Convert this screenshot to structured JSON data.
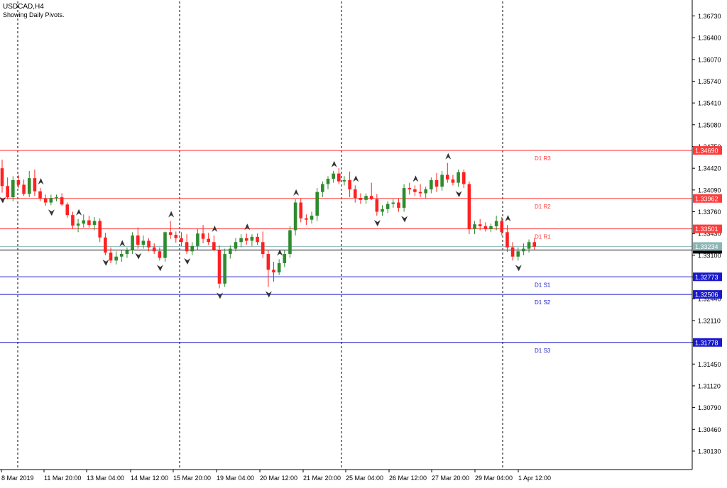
{
  "chart_data": {
    "type": "candlestick",
    "symbol_line": "USDCAD,H4",
    "subtitle": "Showing Daily Pivots.",
    "price_labels": [
      "1.36730",
      "1.36400",
      "1.36070",
      "1.35740",
      "1.35410",
      "1.35080",
      "1.34750",
      "1.34420",
      "1.34090",
      "1.33760",
      "1.33430",
      "1.33100",
      "1.32770",
      "1.32440",
      "1.32110",
      "1.31780",
      "1.31450",
      "1.31120",
      "1.30790",
      "1.30460",
      "1.30130"
    ],
    "time_labels": [
      "8 Mar 2019",
      "11 Mar 20:00",
      "13 Mar 04:00",
      "14 Mar 12:00",
      "15 Mar 20:00",
      "19 Mar 04:00",
      "20 Mar 12:00",
      "21 Mar 20:00",
      "25 Mar 04:00",
      "26 Mar 12:00",
      "27 Mar 20:00",
      "29 Mar 04:00",
      "1 Apr 12:00"
    ],
    "ylim": [
      1.2985,
      1.3695
    ],
    "grid": false,
    "pivots": [
      {
        "name": "D1 R3",
        "value": 1.3469,
        "label": "1.34690",
        "color": "#ff3b3b"
      },
      {
        "name": "D1 R2",
        "value": 1.33962,
        "label": "1.33962",
        "color": "#ff3b3b"
      },
      {
        "name": "D1 R1",
        "value": 1.33501,
        "label": "1.33501",
        "color": "#ff3b3b"
      },
      {
        "name": "D1 S1",
        "value": 1.32773,
        "label": "1.32773",
        "color": "#1a1acc"
      },
      {
        "name": "D1 S2",
        "value": 1.32506,
        "label": "1.32506",
        "color": "#1a1acc"
      },
      {
        "name": "D1 S3",
        "value": 1.31778,
        "label": "1.31778",
        "color": "#1a1acc"
      }
    ],
    "current_price": {
      "value": 1.33234,
      "label": "1.33234",
      "color": "#8cb6b6"
    },
    "bid_line_value": 1.3318,
    "colors": {
      "bull": "#2e8b2e",
      "bear": "#ff2020",
      "wick": "#444444",
      "fractal": "#333333",
      "axis": "#000000"
    },
    "candles": [
      {
        "o": 1.3442,
        "h": 1.3455,
        "l": 1.3405,
        "c": 1.3415
      },
      {
        "o": 1.3415,
        "h": 1.3428,
        "l": 1.3395,
        "c": 1.3398
      },
      {
        "o": 1.3398,
        "h": 1.343,
        "l": 1.3392,
        "c": 1.3424
      },
      {
        "o": 1.3424,
        "h": 1.3432,
        "l": 1.3412,
        "c": 1.3417
      },
      {
        "o": 1.3417,
        "h": 1.3425,
        "l": 1.34,
        "c": 1.3403
      },
      {
        "o": 1.3403,
        "h": 1.3438,
        "l": 1.3398,
        "c": 1.3427
      },
      {
        "o": 1.3427,
        "h": 1.344,
        "l": 1.34,
        "c": 1.3407
      },
      {
        "o": 1.3407,
        "h": 1.3412,
        "l": 1.3392,
        "c": 1.3396
      },
      {
        "o": 1.3396,
        "h": 1.3402,
        "l": 1.3385,
        "c": 1.339
      },
      {
        "o": 1.339,
        "h": 1.3402,
        "l": 1.3386,
        "c": 1.3397
      },
      {
        "o": 1.3397,
        "h": 1.3402,
        "l": 1.3392,
        "c": 1.3398
      },
      {
        "o": 1.3398,
        "h": 1.3404,
        "l": 1.3385,
        "c": 1.3387
      },
      {
        "o": 1.3387,
        "h": 1.339,
        "l": 1.3367,
        "c": 1.3371
      },
      {
        "o": 1.3371,
        "h": 1.3376,
        "l": 1.335,
        "c": 1.3355
      },
      {
        "o": 1.3355,
        "h": 1.3365,
        "l": 1.3345,
        "c": 1.3358
      },
      {
        "o": 1.3358,
        "h": 1.3372,
        "l": 1.3352,
        "c": 1.3363
      },
      {
        "o": 1.3363,
        "h": 1.337,
        "l": 1.3352,
        "c": 1.3356
      },
      {
        "o": 1.3356,
        "h": 1.3368,
        "l": 1.3348,
        "c": 1.3362
      },
      {
        "o": 1.3362,
        "h": 1.3366,
        "l": 1.333,
        "c": 1.3337
      },
      {
        "o": 1.3337,
        "h": 1.3344,
        "l": 1.331,
        "c": 1.3314
      },
      {
        "o": 1.3314,
        "h": 1.3322,
        "l": 1.3298,
        "c": 1.3302
      },
      {
        "o": 1.3302,
        "h": 1.3316,
        "l": 1.3296,
        "c": 1.3308
      },
      {
        "o": 1.3308,
        "h": 1.3318,
        "l": 1.33,
        "c": 1.3312
      },
      {
        "o": 1.3312,
        "h": 1.3322,
        "l": 1.3306,
        "c": 1.3318
      },
      {
        "o": 1.3318,
        "h": 1.3345,
        "l": 1.3312,
        "c": 1.334
      },
      {
        "o": 1.334,
        "h": 1.3352,
        "l": 1.332,
        "c": 1.3326
      },
      {
        "o": 1.3326,
        "h": 1.334,
        "l": 1.332,
        "c": 1.3332
      },
      {
        "o": 1.3332,
        "h": 1.3336,
        "l": 1.3316,
        "c": 1.3322
      },
      {
        "o": 1.3322,
        "h": 1.3328,
        "l": 1.3312,
        "c": 1.3316
      },
      {
        "o": 1.3316,
        "h": 1.3322,
        "l": 1.3302,
        "c": 1.3306
      },
      {
        "o": 1.3306,
        "h": 1.3346,
        "l": 1.33,
        "c": 1.3345
      },
      {
        "o": 1.3345,
        "h": 1.3362,
        "l": 1.3335,
        "c": 1.3341
      },
      {
        "o": 1.3341,
        "h": 1.3346,
        "l": 1.3329,
        "c": 1.3336
      },
      {
        "o": 1.3336,
        "h": 1.3345,
        "l": 1.3324,
        "c": 1.333
      },
      {
        "o": 1.333,
        "h": 1.3342,
        "l": 1.3312,
        "c": 1.3316
      },
      {
        "o": 1.3316,
        "h": 1.333,
        "l": 1.331,
        "c": 1.3324
      },
      {
        "o": 1.3324,
        "h": 1.335,
        "l": 1.3318,
        "c": 1.3343
      },
      {
        "o": 1.3343,
        "h": 1.3356,
        "l": 1.3328,
        "c": 1.3335
      },
      {
        "o": 1.3335,
        "h": 1.3344,
        "l": 1.3326,
        "c": 1.333
      },
      {
        "o": 1.333,
        "h": 1.334,
        "l": 1.3316,
        "c": 1.3318
      },
      {
        "o": 1.3318,
        "h": 1.3325,
        "l": 1.326,
        "c": 1.3267
      },
      {
        "o": 1.3267,
        "h": 1.332,
        "l": 1.3262,
        "c": 1.3312
      },
      {
        "o": 1.3312,
        "h": 1.3325,
        "l": 1.3305,
        "c": 1.332
      },
      {
        "o": 1.332,
        "h": 1.3336,
        "l": 1.3316,
        "c": 1.333
      },
      {
        "o": 1.333,
        "h": 1.3342,
        "l": 1.3322,
        "c": 1.3336
      },
      {
        "o": 1.3336,
        "h": 1.3343,
        "l": 1.3326,
        "c": 1.3332
      },
      {
        "o": 1.3332,
        "h": 1.3342,
        "l": 1.3324,
        "c": 1.3338
      },
      {
        "o": 1.3338,
        "h": 1.3343,
        "l": 1.3326,
        "c": 1.333
      },
      {
        "o": 1.333,
        "h": 1.3346,
        "l": 1.3306,
        "c": 1.3312
      },
      {
        "o": 1.3312,
        "h": 1.3318,
        "l": 1.3262,
        "c": 1.3288
      },
      {
        "o": 1.3288,
        "h": 1.33,
        "l": 1.327,
        "c": 1.3284
      },
      {
        "o": 1.3284,
        "h": 1.3304,
        "l": 1.328,
        "c": 1.3298
      },
      {
        "o": 1.3298,
        "h": 1.3318,
        "l": 1.3292,
        "c": 1.3312
      },
      {
        "o": 1.3312,
        "h": 1.3354,
        "l": 1.3306,
        "c": 1.3348
      },
      {
        "o": 1.3348,
        "h": 1.3395,
        "l": 1.334,
        "c": 1.339
      },
      {
        "o": 1.339,
        "h": 1.3396,
        "l": 1.336,
        "c": 1.3366
      },
      {
        "o": 1.3366,
        "h": 1.3372,
        "l": 1.3356,
        "c": 1.3364
      },
      {
        "o": 1.3364,
        "h": 1.3376,
        "l": 1.3358,
        "c": 1.337
      },
      {
        "o": 1.337,
        "h": 1.3412,
        "l": 1.3362,
        "c": 1.3406
      },
      {
        "o": 1.3406,
        "h": 1.3422,
        "l": 1.3398,
        "c": 1.3418
      },
      {
        "o": 1.3418,
        "h": 1.343,
        "l": 1.341,
        "c": 1.3426
      },
      {
        "o": 1.3426,
        "h": 1.3438,
        "l": 1.342,
        "c": 1.3434
      },
      {
        "o": 1.3434,
        "h": 1.3442,
        "l": 1.3418,
        "c": 1.3422
      },
      {
        "o": 1.3422,
        "h": 1.343,
        "l": 1.3416,
        "c": 1.3424
      },
      {
        "o": 1.3424,
        "h": 1.3437,
        "l": 1.3398,
        "c": 1.341
      },
      {
        "o": 1.341,
        "h": 1.3416,
        "l": 1.339,
        "c": 1.3397
      },
      {
        "o": 1.3397,
        "h": 1.3404,
        "l": 1.3388,
        "c": 1.3394
      },
      {
        "o": 1.3394,
        "h": 1.3404,
        "l": 1.3388,
        "c": 1.34
      },
      {
        "o": 1.34,
        "h": 1.342,
        "l": 1.3394,
        "c": 1.3395
      },
      {
        "o": 1.3395,
        "h": 1.3403,
        "l": 1.337,
        "c": 1.3376
      },
      {
        "o": 1.3376,
        "h": 1.3386,
        "l": 1.337,
        "c": 1.338
      },
      {
        "o": 1.338,
        "h": 1.3392,
        "l": 1.3374,
        "c": 1.3388
      },
      {
        "o": 1.3388,
        "h": 1.3395,
        "l": 1.3382,
        "c": 1.339
      },
      {
        "o": 1.339,
        "h": 1.3396,
        "l": 1.3376,
        "c": 1.3382
      },
      {
        "o": 1.3382,
        "h": 1.3418,
        "l": 1.3376,
        "c": 1.3412
      },
      {
        "o": 1.3412,
        "h": 1.342,
        "l": 1.3402,
        "c": 1.341
      },
      {
        "o": 1.341,
        "h": 1.3416,
        "l": 1.34,
        "c": 1.3406
      },
      {
        "o": 1.3406,
        "h": 1.3418,
        "l": 1.3398,
        "c": 1.3404
      },
      {
        "o": 1.3404,
        "h": 1.3414,
        "l": 1.3396,
        "c": 1.341
      },
      {
        "o": 1.341,
        "h": 1.3428,
        "l": 1.3404,
        "c": 1.3424
      },
      {
        "o": 1.3424,
        "h": 1.3435,
        "l": 1.3406,
        "c": 1.3414
      },
      {
        "o": 1.3414,
        "h": 1.3438,
        "l": 1.3408,
        "c": 1.3432
      },
      {
        "o": 1.3432,
        "h": 1.345,
        "l": 1.342,
        "c": 1.3425
      },
      {
        "o": 1.3425,
        "h": 1.3432,
        "l": 1.3416,
        "c": 1.342
      },
      {
        "o": 1.342,
        "h": 1.344,
        "l": 1.3414,
        "c": 1.3436
      },
      {
        "o": 1.3436,
        "h": 1.344,
        "l": 1.3412,
        "c": 1.3418
      },
      {
        "o": 1.3418,
        "h": 1.3422,
        "l": 1.3342,
        "c": 1.335
      },
      {
        "o": 1.335,
        "h": 1.3362,
        "l": 1.3342,
        "c": 1.3357
      },
      {
        "o": 1.3357,
        "h": 1.3365,
        "l": 1.3348,
        "c": 1.3354
      },
      {
        "o": 1.3354,
        "h": 1.336,
        "l": 1.3346,
        "c": 1.335
      },
      {
        "o": 1.335,
        "h": 1.3358,
        "l": 1.3345,
        "c": 1.3354
      },
      {
        "o": 1.3354,
        "h": 1.337,
        "l": 1.3348,
        "c": 1.3362
      },
      {
        "o": 1.3362,
        "h": 1.3368,
        "l": 1.334,
        "c": 1.3345
      },
      {
        "o": 1.3345,
        "h": 1.3356,
        "l": 1.3315,
        "c": 1.3322
      },
      {
        "o": 1.3322,
        "h": 1.333,
        "l": 1.3302,
        "c": 1.3308
      },
      {
        "o": 1.3308,
        "h": 1.3322,
        "l": 1.3302,
        "c": 1.3316
      },
      {
        "o": 1.3316,
        "h": 1.3328,
        "l": 1.331,
        "c": 1.332
      },
      {
        "o": 1.332,
        "h": 1.3334,
        "l": 1.3314,
        "c": 1.333
      },
      {
        "o": 1.333,
        "h": 1.3336,
        "l": 1.3318,
        "c": 1.3323
      }
    ],
    "fractals": [
      {
        "i": 0,
        "dir": "down"
      },
      {
        "i": 7,
        "dir": "up"
      },
      {
        "i": 9,
        "dir": "down"
      },
      {
        "i": 14,
        "dir": "up"
      },
      {
        "i": 19,
        "dir": "down"
      },
      {
        "i": 22,
        "dir": "up"
      },
      {
        "i": 25,
        "dir": "down"
      },
      {
        "i": 29,
        "dir": "down"
      },
      {
        "i": 31,
        "dir": "up"
      },
      {
        "i": 34,
        "dir": "down"
      },
      {
        "i": 39,
        "dir": "up"
      },
      {
        "i": 40,
        "dir": "down"
      },
      {
        "i": 45,
        "dir": "up"
      },
      {
        "i": 49,
        "dir": "down"
      },
      {
        "i": 51,
        "dir": "up"
      },
      {
        "i": 54,
        "dir": "up"
      },
      {
        "i": 61,
        "dir": "up"
      },
      {
        "i": 65,
        "dir": "up"
      },
      {
        "i": 69,
        "dir": "down"
      },
      {
        "i": 74,
        "dir": "down"
      },
      {
        "i": 76,
        "dir": "up"
      },
      {
        "i": 82,
        "dir": "up"
      },
      {
        "i": 84,
        "dir": "down"
      },
      {
        "i": 93,
        "dir": "up"
      },
      {
        "i": 95,
        "dir": "down"
      }
    ],
    "separator_times": [
      "11 Mar 00:00",
      "18 Mar 00:00",
      "25 Mar 00:00",
      "1 Apr 00:00"
    ]
  }
}
